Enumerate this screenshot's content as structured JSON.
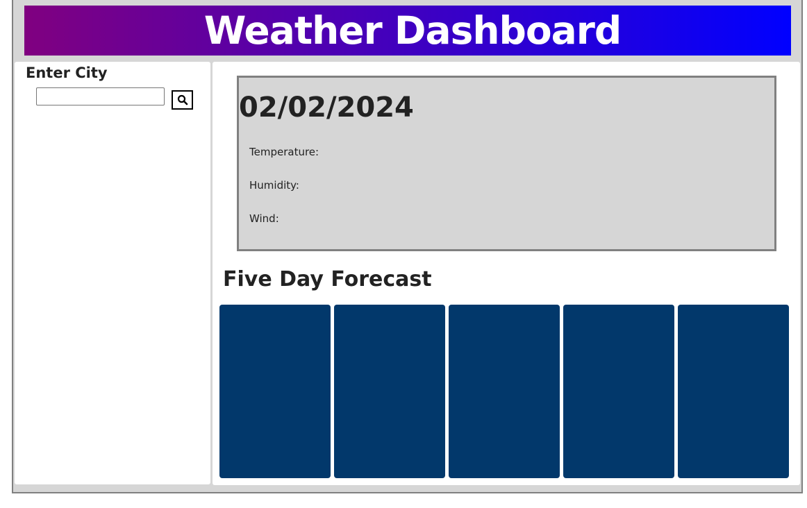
{
  "header": {
    "title": "Weather Dashboard",
    "gradient_start": "#800080",
    "gradient_end": "#0000ff"
  },
  "sidebar": {
    "heading": "Enter City",
    "search_value": "",
    "search_placeholder": "",
    "search_icon": "search-icon"
  },
  "current": {
    "date": "02/02/2024",
    "temperature_label": "Temperature:",
    "humidity_label": "Humidity:",
    "wind_label": "Wind:"
  },
  "forecast": {
    "title": "Five Day Forecast",
    "card_color": "#02386b",
    "cards": [
      {
        "day": ""
      },
      {
        "day": ""
      },
      {
        "day": ""
      },
      {
        "day": ""
      },
      {
        "day": ""
      }
    ]
  }
}
